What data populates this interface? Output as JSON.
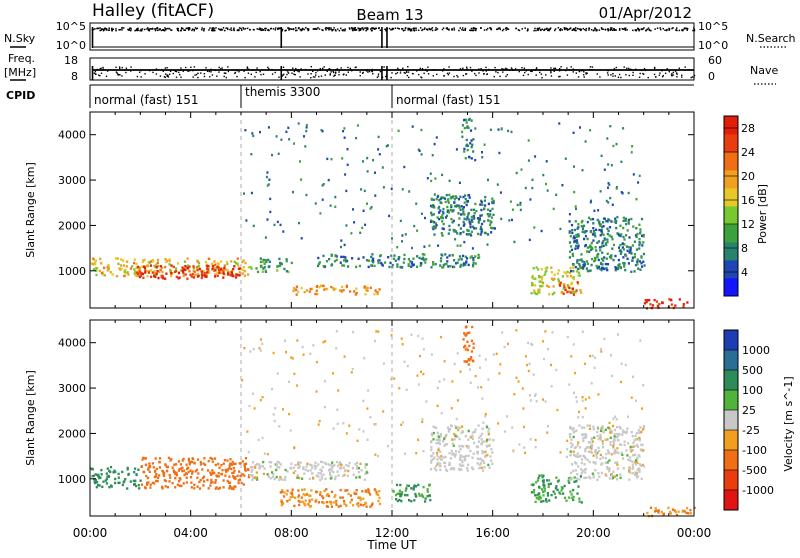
{
  "header": {
    "station": "Halley (fitACF)",
    "beam": "Beam 13",
    "date": "01/Apr/2012"
  },
  "top_panel": {
    "left_label": "N.Sky",
    "right_label": "N.Search",
    "left_ticks": [
      "10^5",
      "10^0"
    ],
    "right_ticks": [
      "10^5",
      "10^0"
    ]
  },
  "freq_panel": {
    "left_label_1": "Freq.",
    "left_label_2": "[MHz]",
    "left_ticks": [
      "18",
      "8"
    ],
    "right_label": "Nave",
    "right_ticks": [
      "60",
      "0"
    ]
  },
  "cpid": {
    "label": "CPID",
    "segments": [
      {
        "start_hour": 0,
        "end_hour": 6,
        "label": "normal (fast) 151"
      },
      {
        "start_hour": 6,
        "end_hour": 12,
        "label": "themis 3300"
      },
      {
        "start_hour": 12,
        "end_hour": 24,
        "label": "normal (fast) 151"
      }
    ]
  },
  "x_axis": {
    "label": "Time UT",
    "ticks": [
      "00:00",
      "04:00",
      "08:00",
      "12:00",
      "16:00",
      "20:00",
      "00:00"
    ]
  },
  "y_axis": {
    "label": "Slant Range [km]",
    "ticks": [
      "1000",
      "2000",
      "3000",
      "4000"
    ]
  },
  "power_colorbar": {
    "label": "Power [dB]",
    "ticks": [
      "4",
      "8",
      "12",
      "16",
      "20",
      "24",
      "28"
    ],
    "colors": [
      "#1414ff",
      "#1e46b4",
      "#28826e",
      "#3ca03c",
      "#78c832",
      "#e6c828",
      "#f0a01e",
      "#f06e14",
      "#eb3c0f",
      "#e11e0a"
    ]
  },
  "velocity_colorbar": {
    "label": "Velocity [m s^-1]",
    "ticks": [
      "1000",
      "500",
      "100",
      "25",
      "-25",
      "-100",
      "-500",
      "-1000"
    ],
    "colors": [
      "#1e3cb4",
      "#2a6e96",
      "#2e8c5a",
      "#50b43c",
      "#c8c8c8",
      "#f0a01e",
      "#f06e14",
      "#eb3c0f",
      "#e11414"
    ]
  },
  "chart_data": {
    "type": "heatmap",
    "x_unit": "hours UT",
    "y_unit": "km",
    "xlim": [
      0,
      24
    ],
    "ylim": [
      180,
      4500
    ],
    "power_panel": {
      "colorbar_range_dB": [
        0,
        30
      ],
      "blobs": [
        {
          "t0": 0.0,
          "t1": 6.3,
          "r0": 900,
          "r1": 1300,
          "value": 18
        },
        {
          "t0": 1.8,
          "t1": 6.0,
          "r0": 850,
          "r1": 1150,
          "value": 28
        },
        {
          "t0": 6.3,
          "t1": 8.0,
          "r0": 1000,
          "r1": 1300,
          "value": 10
        },
        {
          "t0": 8.0,
          "t1": 11.5,
          "r0": 500,
          "r1": 700,
          "value": 20
        },
        {
          "t0": 9.0,
          "t1": 15.5,
          "r0": 1100,
          "r1": 1400,
          "value": 8
        },
        {
          "t0": 13.5,
          "t1": 16.0,
          "r0": 1800,
          "r1": 2700,
          "value": 8
        },
        {
          "t0": 14.8,
          "t1": 15.2,
          "r0": 3500,
          "r1": 4400,
          "value": 8
        },
        {
          "t0": 17.5,
          "t1": 19.5,
          "r0": 500,
          "r1": 1100,
          "value": 16
        },
        {
          "t0": 18.6,
          "t1": 19.4,
          "r0": 500,
          "r1": 800,
          "value": 28
        },
        {
          "t0": 19.0,
          "t1": 22.0,
          "r0": 1000,
          "r1": 2200,
          "value": 8
        },
        {
          "t0": 22.0,
          "t1": 24.0,
          "r0": 200,
          "r1": 400,
          "value": 28
        }
      ]
    },
    "velocity_panel": {
      "blobs": [
        {
          "t0": 0.0,
          "t1": 2.0,
          "r0": 800,
          "r1": 1300,
          "value": 200
        },
        {
          "t0": 2.0,
          "t1": 6.3,
          "r0": 800,
          "r1": 1500,
          "value": -200
        },
        {
          "t0": 6.3,
          "t1": 11.0,
          "r0": 1000,
          "r1": 1400,
          "value": 0
        },
        {
          "t0": 7.5,
          "t1": 11.5,
          "r0": 400,
          "r1": 800,
          "value": -100
        },
        {
          "t0": 12.0,
          "t1": 13.5,
          "r0": 500,
          "r1": 900,
          "value": 100
        },
        {
          "t0": 13.5,
          "t1": 16.0,
          "r0": 1200,
          "r1": 2200,
          "value": 0
        },
        {
          "t0": 14.8,
          "t1": 15.2,
          "r0": 3500,
          "r1": 4400,
          "value": -200
        },
        {
          "t0": 17.5,
          "t1": 19.5,
          "r0": 500,
          "r1": 1100,
          "value": 100
        },
        {
          "t0": 19.0,
          "t1": 22.0,
          "r0": 1000,
          "r1": 2200,
          "value": 0
        },
        {
          "t0": 22.0,
          "t1": 24.0,
          "r0": 200,
          "r1": 400,
          "value": -100
        }
      ]
    }
  }
}
